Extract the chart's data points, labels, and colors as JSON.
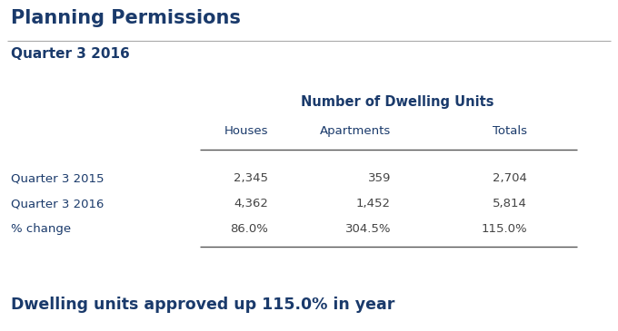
{
  "title": "Planning Permissions",
  "subtitle": "Quarter 3 2016",
  "table_header": "Number of Dwelling Units",
  "col_headers": [
    "Houses",
    "Apartments",
    "Totals"
  ],
  "row_labels": [
    "Quarter 3 2015",
    "Quarter 3 2016",
    "% change"
  ],
  "table_data": [
    [
      "2,345",
      "359",
      "2,704"
    ],
    [
      "4,362",
      "1,452",
      "5,814"
    ],
    [
      "86.0%",
      "304.5%",
      "115.0%"
    ]
  ],
  "footer": "Dwelling units approved up 115.0% in year",
  "title_color": "#1a3a6b",
  "subtitle_color": "#1a3a6b",
  "header_color": "#1a3a6b",
  "row_label_color": "#1a3a6b",
  "data_color": "#444444",
  "footer_color": "#1a3a6b",
  "bg_color": "#ffffff",
  "line_color": "#aaaaaa",
  "title_fontsize": 15,
  "subtitle_fontsize": 11,
  "table_header_fontsize": 10.5,
  "col_header_fontsize": 9.5,
  "data_fontsize": 9.5,
  "footer_fontsize": 12.5
}
